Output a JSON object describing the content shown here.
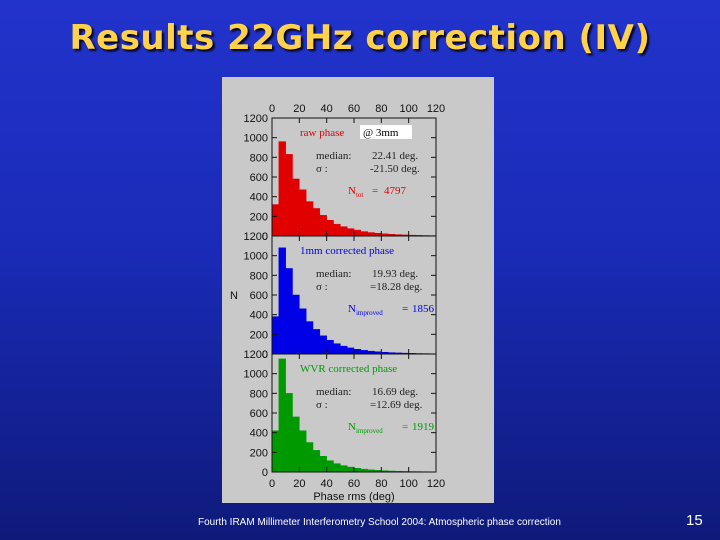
{
  "slide": {
    "title": "Results 22GHz correction (IV)",
    "footer": "Fourth IRAM Millimeter Interferometry School 2004: Atmospheric phase correction",
    "page_number": "15"
  },
  "colors": {
    "background": "#1a2bb8",
    "title": "#ffd24a",
    "panel_bg": "#c9c9c9",
    "raw": "#e00000",
    "mm1": "#0000e6",
    "wvr": "#009a00"
  },
  "chart_data": {
    "type": "bar",
    "layout": "three vertically stacked histograms sharing the x axis",
    "xlabel": "Phase rms (deg)",
    "ylabel": "N",
    "xlim": [
      0,
      120
    ],
    "ylim": [
      0,
      1200
    ],
    "x_ticks": [
      "0",
      "20",
      "40",
      "60",
      "80",
      "100",
      "120"
    ],
    "y_ticks": [
      "0",
      "200",
      "400",
      "600",
      "800",
      "1000",
      "1200"
    ],
    "bin_width": 5,
    "bin_starts": [
      0,
      5,
      10,
      15,
      20,
      25,
      30,
      35,
      40,
      45,
      50,
      55,
      60,
      65,
      70,
      75,
      80,
      85,
      90,
      95,
      100,
      105,
      110,
      115
    ],
    "annotation": "@ 3mm",
    "panels": [
      {
        "name": "raw phase",
        "color": "#e00000",
        "values": [
          320,
          960,
          830,
          580,
          470,
          350,
          280,
          210,
          160,
          120,
          95,
          75,
          60,
          45,
          35,
          28,
          22,
          18,
          14,
          11,
          9,
          7,
          5,
          4
        ],
        "median_label": "median:",
        "median_value": "22.41 deg.",
        "sigma_label": "σ  :",
        "sigma_value": "-21.50 deg.",
        "n_label": "N",
        "n_sub": "tot",
        "n_eq": "=",
        "n_value": "4797"
      },
      {
        "name": "1mm corrected phase",
        "color": "#0000e6",
        "values": [
          380,
          1080,
          870,
          600,
          460,
          330,
          250,
          185,
          140,
          105,
          80,
          62,
          48,
          37,
          29,
          23,
          18,
          14,
          11,
          9,
          7,
          5,
          4,
          3
        ],
        "median_label": "median:",
        "median_value": "19.93 deg.",
        "sigma_label": "σ  :",
        "sigma_value": "=18.28 deg.",
        "n_label": "N",
        "n_sub": "improved",
        "n_eq": "=",
        "n_value": "1856"
      },
      {
        "name": "WVR corrected phase",
        "color": "#009a00",
        "values": [
          420,
          1150,
          800,
          560,
          420,
          300,
          220,
          160,
          115,
          85,
          65,
          50,
          38,
          29,
          22,
          17,
          13,
          10,
          8,
          6,
          5,
          4,
          3,
          2
        ],
        "median_label": "median:",
        "median_value": "16.69 deg.",
        "sigma_label": "σ  :",
        "sigma_value": "=12.69 deg.",
        "n_label": "N",
        "n_sub": "improved",
        "n_eq": "=",
        "n_value": "1919"
      }
    ]
  }
}
